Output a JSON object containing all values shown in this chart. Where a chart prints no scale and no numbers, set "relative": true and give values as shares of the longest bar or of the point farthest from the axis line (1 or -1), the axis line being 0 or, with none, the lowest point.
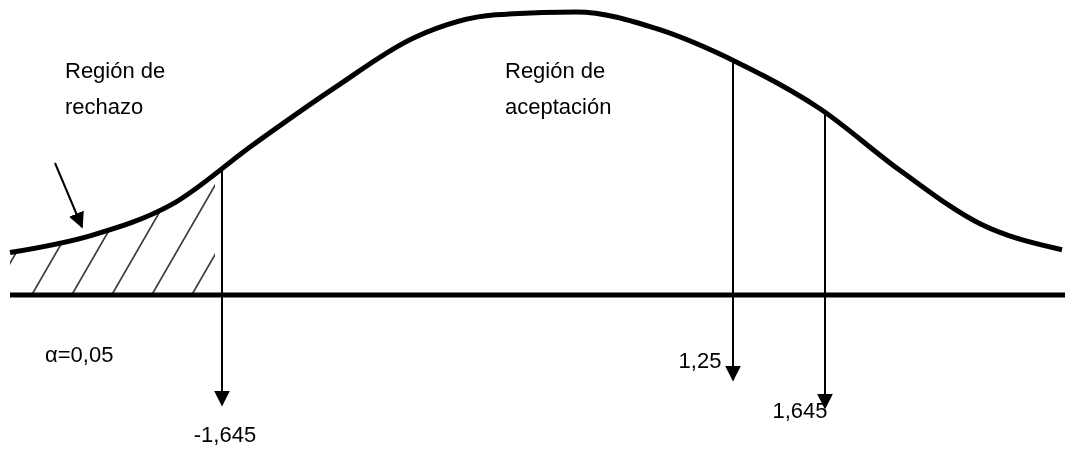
{
  "chart_data": {
    "type": "line",
    "relative": true,
    "line_style": "solid",
    "categories": [
      null,
      null,
      null,
      null,
      null,
      null,
      null,
      null,
      null,
      null,
      null,
      null,
      null,
      null
    ],
    "series": [
      {
        "color": "#000000",
        "values": [
          0.15,
          0.21,
          0.32,
          0.53,
          0.73,
          0.91,
          0.99,
          1,
          0.94,
          0.82,
          0.66,
          0.44,
          0.25,
          0.16
        ]
      }
    ],
    "annotations": [
      "Región de rechazo",
      "Región de aceptación",
      "α=0,05",
      "-1,645",
      "1,25",
      "1,645"
    ]
  }
}
